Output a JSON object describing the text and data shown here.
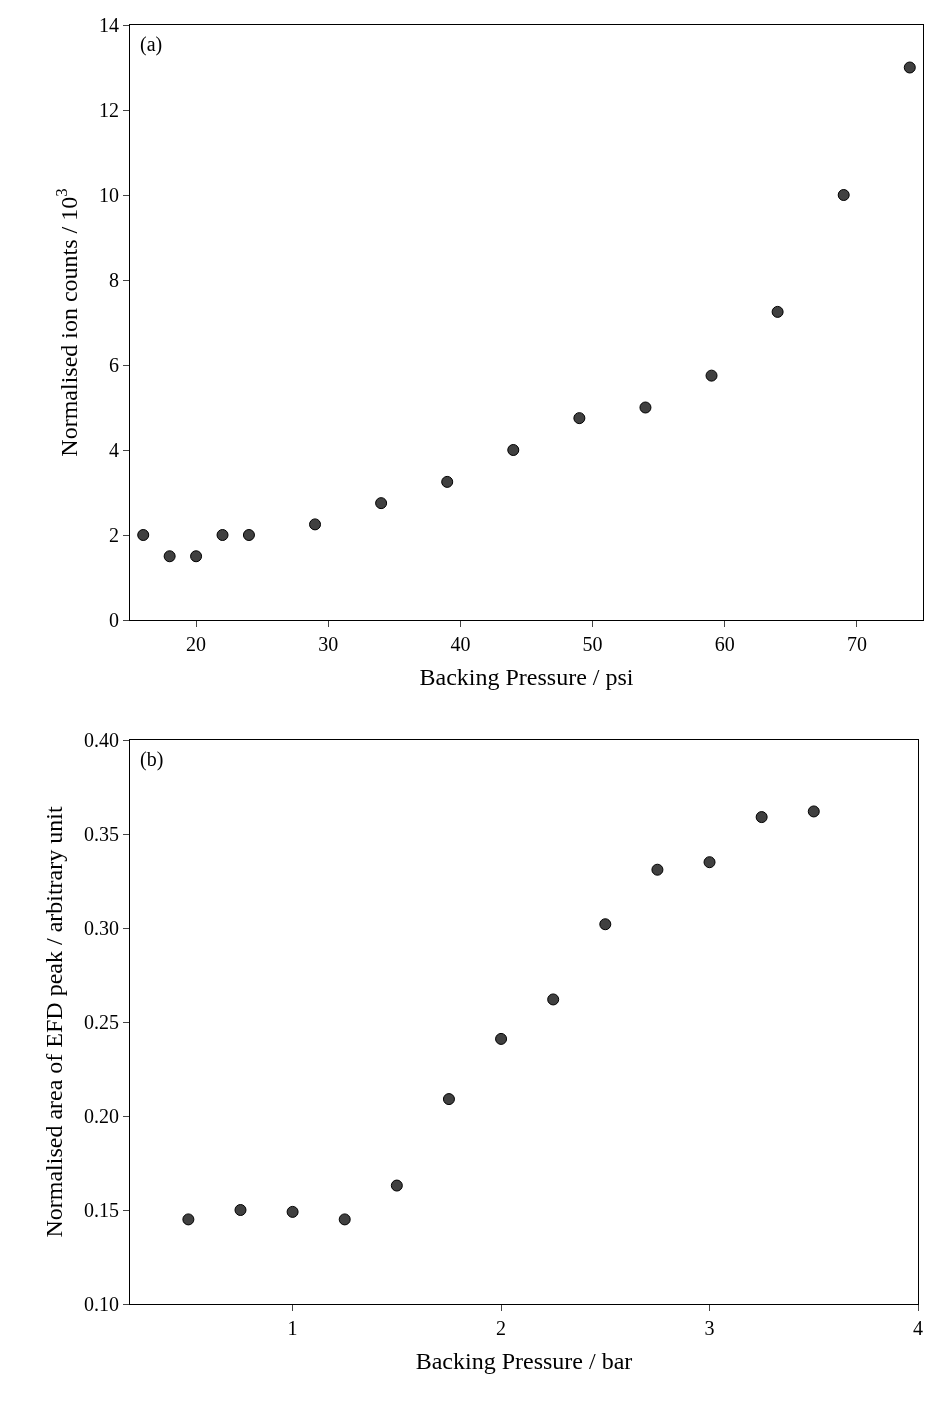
{
  "chart_data": [
    {
      "type": "scatter",
      "xlabel": "Backing Pressure / psi",
      "ylabel": "Normalised ion counts / 10$^{3}$",
      "annotations": [
        "(a)"
      ],
      "marker": "circle",
      "xlim": [
        15,
        75
      ],
      "xticks": [
        20,
        30,
        40,
        50,
        60,
        70
      ],
      "ylim": [
        0,
        14
      ],
      "yticks": [
        0,
        2,
        4,
        6,
        8,
        10,
        12,
        14
      ],
      "x": [
        16,
        18,
        20,
        22,
        24,
        29,
        34,
        39,
        44,
        49,
        54,
        59,
        64,
        69,
        74
      ],
      "series": [
        {
          "color": "#404040",
          "values": [
            2,
            1.5,
            1.5,
            2,
            2,
            2.25,
            2.75,
            3.25,
            4,
            4.75,
            5,
            5.75,
            7.25,
            10,
            13
          ]
        }
      ]
    },
    {
      "type": "scatter",
      "xlabel": "Backing Pressure / bar",
      "ylabel": "Normalised area of EFD peak / arbitrary unit",
      "annotations": [
        "(b)"
      ],
      "marker": "circle",
      "xlim": [
        0.22,
        4
      ],
      "xticks": [
        1,
        2,
        3,
        4
      ],
      "ylim": [
        0.1,
        0.4
      ],
      "yticks": [
        {
          "value": 0.1,
          "label": "0.10"
        },
        {
          "value": 0.15,
          "label": "0.15"
        },
        {
          "value": 0.2,
          "label": "0.20"
        },
        {
          "value": 0.25,
          "label": "0.25"
        },
        {
          "value": 0.3,
          "label": "0.30"
        },
        {
          "value": 0.35,
          "label": "0.35"
        },
        {
          "value": 0.4,
          "label": "0.40"
        }
      ],
      "x": [
        0.5,
        0.75,
        1,
        1.25,
        1.5,
        1.75,
        2,
        2.25,
        2.5,
        2.75,
        3,
        3.25,
        3.5
      ],
      "series": [
        {
          "color": "#404040",
          "values": [
            0.145,
            0.15,
            0.149,
            0.145,
            0.163,
            0.209,
            0.241,
            0.262,
            0.302,
            0.331,
            0.335,
            0.359,
            0.362
          ]
        }
      ]
    }
  ]
}
